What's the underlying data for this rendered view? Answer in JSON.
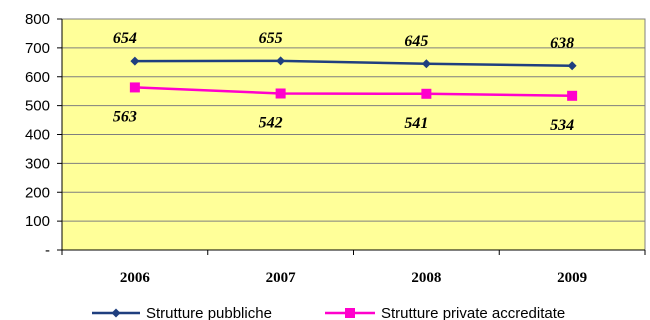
{
  "chart_data": {
    "type": "line",
    "categories": [
      "2006",
      "2007",
      "2008",
      "2009"
    ],
    "ylim": [
      0,
      800
    ],
    "y_ticks": [
      "-",
      "100",
      "200",
      "300",
      "400",
      "500",
      "600",
      "700",
      "800"
    ],
    "grid": true,
    "legend_position": "bottom",
    "plot_background": "#FFFF99",
    "series": [
      {
        "name": "Strutture pubbliche",
        "values": [
          654,
          655,
          645,
          638
        ],
        "labels": [
          "654",
          "655",
          "645",
          "638"
        ],
        "color": "#1F3F7F",
        "marker": "diamond",
        "label_position": "above"
      },
      {
        "name": "Strutture private accreditate",
        "values": [
          563,
          542,
          541,
          534
        ],
        "labels": [
          "563",
          "542",
          "541",
          "534"
        ],
        "color": "#FF00CC",
        "marker": "square",
        "label_position": "below"
      }
    ]
  }
}
